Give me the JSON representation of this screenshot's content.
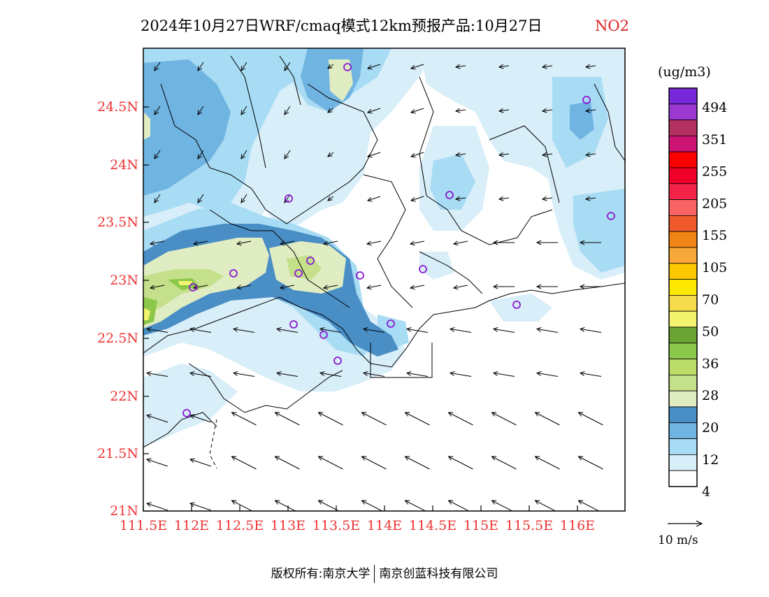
{
  "title": {
    "main": "2024年10月27日WRF/cmaq模式12km预报产品:10月27日",
    "species": "NO2"
  },
  "colors": {
    "species": "#dd2222",
    "axis_labels": "#ee3333",
    "border": "#000000"
  },
  "map": {
    "lat_ticks": [
      "24.5N",
      "24N",
      "23.5N",
      "23N",
      "22.5N",
      "22N",
      "21.5N",
      "21N"
    ],
    "lon_ticks": [
      "111.5E",
      "112E",
      "112.5E",
      "113E",
      "113.5E",
      "114E",
      "114.5E",
      "115E",
      "115.5E",
      "116E"
    ],
    "stations_count_note": "purple circles mark monitoring cities"
  },
  "legend": {
    "unit": "(ug/m3)",
    "colors": [
      "#ffffff",
      "#d8eef8",
      "#a8dcf4",
      "#70b4e2",
      "#4a8ec6",
      "#e0ecc2",
      "#c4e08a",
      "#bcdc6a",
      "#8cc84a",
      "#6aa234",
      "#f2f46e",
      "#f4dc4c",
      "#fce800",
      "#fcc800",
      "#f8a838",
      "#f08414",
      "#ee5a2c",
      "#f86464",
      "#f42448",
      "#f00028",
      "#fc0000",
      "#cc1474",
      "#b43060",
      "#9a38d0",
      "#7828d8"
    ],
    "labels": [
      "4",
      "12",
      "20",
      "28",
      "36",
      "50",
      "70",
      "105",
      "155",
      "205",
      "255",
      "351",
      "494"
    ],
    "wind_scale": "10 m/s"
  },
  "footer": {
    "left": "版权所有:南京大学",
    "right": "南京创蓝科技有限公司"
  }
}
